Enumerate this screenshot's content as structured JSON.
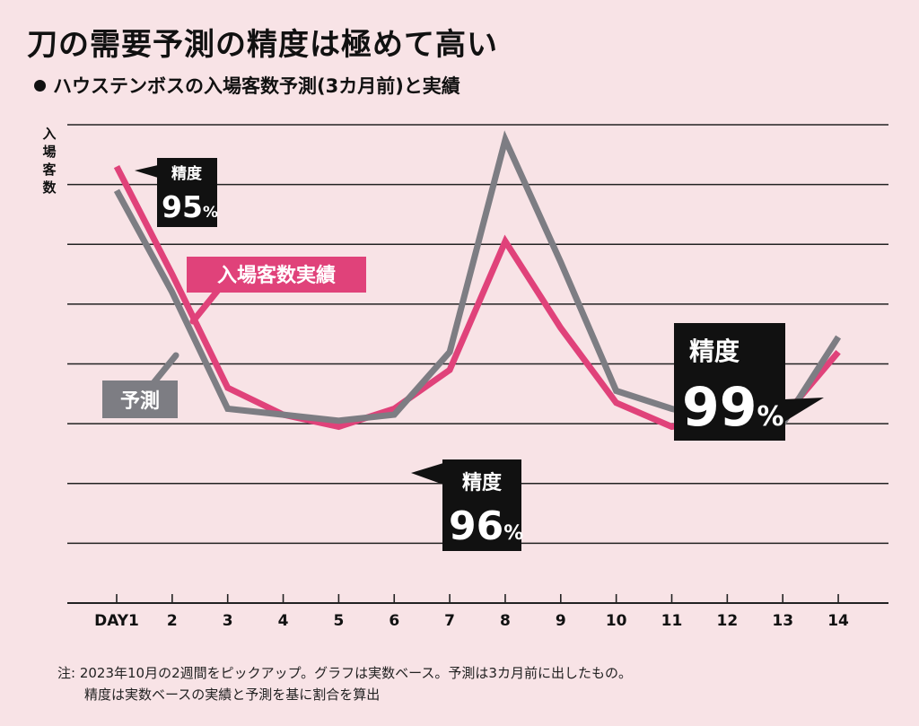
{
  "title": "刀の需要予測の精度は極めて高い",
  "subtitle": "ハウステンボスの入場客数予測(3カ月前)と実績",
  "ylabel": [
    "入",
    "場",
    "客",
    "数"
  ],
  "notes": {
    "line1": "注: 2023年10月の2週間をピックアップ。グラフは実数ベース。予測は3カ月前に出したもの。",
    "line2": "精度は実数ベースの実績と予測を基に割合を算出"
  },
  "labels": {
    "actual": "入場客数実績",
    "forecast": "予測",
    "acc1_word": "精度",
    "acc1_value": "95",
    "acc1_unit": "%",
    "acc2_word": "精度",
    "acc2_value": "96",
    "acc2_unit": "%",
    "acc3_word": "精度",
    "acc3_value": "99",
    "acc3_unit": "%"
  },
  "colors": {
    "actual": "#e0427a",
    "forecast": "#7d7d83",
    "background": "#f8e3e6",
    "gridline": "#222222",
    "label_box": "#111111"
  },
  "chart_data": {
    "type": "line",
    "title": "刀の需要予測の精度は極めて高い",
    "subtitle": "ハウステンボスの入場客数予測(3カ月前)と実績",
    "xlabel": "",
    "ylabel": "入場客数",
    "categories": [
      "DAY1",
      "2",
      "3",
      "4",
      "5",
      "6",
      "7",
      "8",
      "9",
      "10",
      "11",
      "12",
      "13",
      "14"
    ],
    "ylim": [
      0,
      8
    ],
    "grid": true,
    "y_ticks_shown": false,
    "series": [
      {
        "name": "入場客数実績",
        "color": "#e0427a",
        "values": [
          7.3,
          5.5,
          3.6,
          3.15,
          2.95,
          3.25,
          3.9,
          6.05,
          4.6,
          3.35,
          2.95,
          3.1,
          3.1,
          4.2
        ]
      },
      {
        "name": "予測",
        "color": "#7d7d83",
        "values": [
          6.9,
          5.2,
          3.25,
          3.15,
          3.05,
          3.15,
          4.2,
          7.75,
          5.7,
          3.55,
          3.25,
          3.05,
          3.0,
          4.45
        ]
      }
    ],
    "annotations": [
      {
        "text": "精度95%",
        "x": "DAY1"
      },
      {
        "text": "精度96%",
        "x": "6"
      },
      {
        "text": "精度99%",
        "x": "13"
      }
    ]
  }
}
